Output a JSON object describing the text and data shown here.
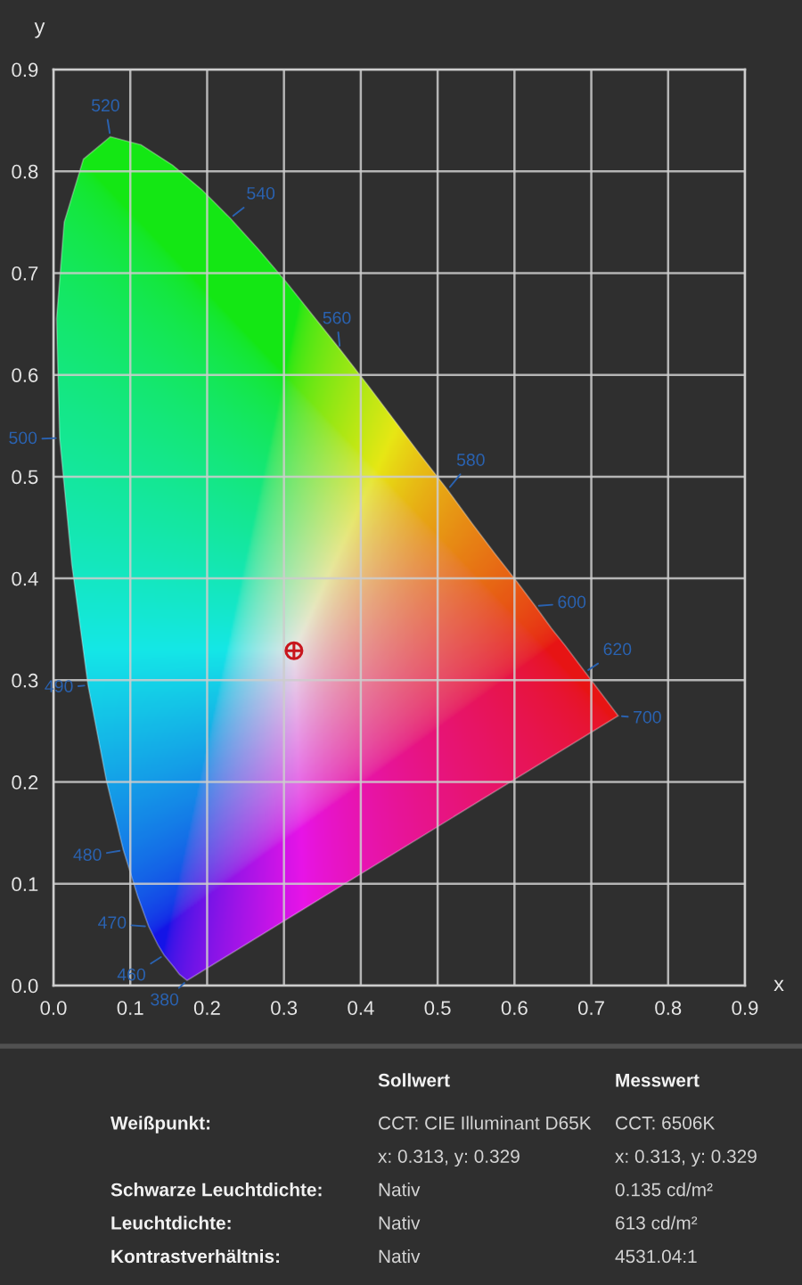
{
  "chart_data": [
    {
      "type": "line",
      "xlabel": "x",
      "ylabel": "y",
      "xlim": [
        0,
        0.9
      ],
      "ylim": [
        0,
        0.9
      ],
      "xticks": [
        {
          "value": 0,
          "label": "0.0"
        },
        0.1,
        0.2,
        0.3,
        0.4,
        0.5,
        0.6,
        0.7,
        0.8,
        0.9
      ],
      "yticks": [
        {
          "value": 0,
          "label": "0.0"
        },
        0.1,
        0.2,
        0.3,
        0.4,
        0.5,
        0.6,
        0.7,
        0.8,
        0.9
      ],
      "grid": true,
      "series": [
        {
          "type": "area",
          "x": [
            0.174,
            0.164,
            0.157,
            0.144,
            0.136,
            0.124,
            0.11,
            0.091,
            0.069,
            0.045,
            0.024,
            0.008,
            0.004,
            0.014,
            0.039,
            0.074,
            0.114,
            0.155,
            0.193,
            0.23,
            0.266,
            0.302,
            0.337,
            0.373,
            0.409,
            0.444,
            0.479,
            0.513,
            0.545,
            0.575,
            0.603,
            0.627,
            0.648,
            0.666,
            0.692,
            0.708,
            0.719,
            0.726,
            0.735
          ],
          "values": [
            0.005,
            0.011,
            0.018,
            0.03,
            0.04,
            0.058,
            0.087,
            0.133,
            0.201,
            0.295,
            0.413,
            0.538,
            0.655,
            0.75,
            0.812,
            0.834,
            0.826,
            0.806,
            0.782,
            0.754,
            0.724,
            0.692,
            0.659,
            0.625,
            0.59,
            0.555,
            0.52,
            0.487,
            0.454,
            0.424,
            0.397,
            0.373,
            0.351,
            0.334,
            0.308,
            0.292,
            0.281,
            0.274,
            0.265
          ]
        },
        {
          "type": "scatter",
          "x": [
            0.313
          ],
          "values": [
            0.329
          ],
          "color": "#c8161d",
          "marker": "cross"
        }
      ],
      "annotations": [
        {
          "text": "380",
          "x": 0.174,
          "y": 0.005
        },
        {
          "text": "460",
          "x": 0.144,
          "y": 0.03
        },
        {
          "text": "470",
          "x": 0.124,
          "y": 0.058
        },
        {
          "text": "480",
          "x": 0.091,
          "y": 0.133
        },
        {
          "text": "490",
          "x": 0.045,
          "y": 0.295
        },
        {
          "text": "500",
          "x": 0.008,
          "y": 0.538
        },
        {
          "text": "520",
          "x": 0.074,
          "y": 0.834
        },
        {
          "text": "540",
          "x": 0.23,
          "y": 0.754
        },
        {
          "text": "560",
          "x": 0.373,
          "y": 0.625
        },
        {
          "text": "580",
          "x": 0.513,
          "y": 0.487
        },
        {
          "text": "600",
          "x": 0.627,
          "y": 0.373
        },
        {
          "text": "620",
          "x": 0.692,
          "y": 0.308
        },
        {
          "text": "700",
          "x": 0.735,
          "y": 0.265
        }
      ]
    },
    {
      "type": "other",
      "categories": [
        "Sollwert",
        "Messwert"
      ],
      "y_categories": [
        "Weißpunkt:",
        "Schwarze Leuchtdichte:",
        "Leuchtdichte:",
        "Kontrastverhältnis:"
      ],
      "cell_labels": [
        [
          "CCT: CIE Illuminant D65K\nx: 0.313, y: 0.329",
          "CCT: 6506K\nx: 0.313, y: 0.329"
        ],
        [
          "Nativ",
          "0.135 cd/m²"
        ],
        [
          "Nativ",
          "613 cd/m²"
        ],
        [
          "Nativ",
          "4531.04:1"
        ]
      ]
    }
  ]
}
